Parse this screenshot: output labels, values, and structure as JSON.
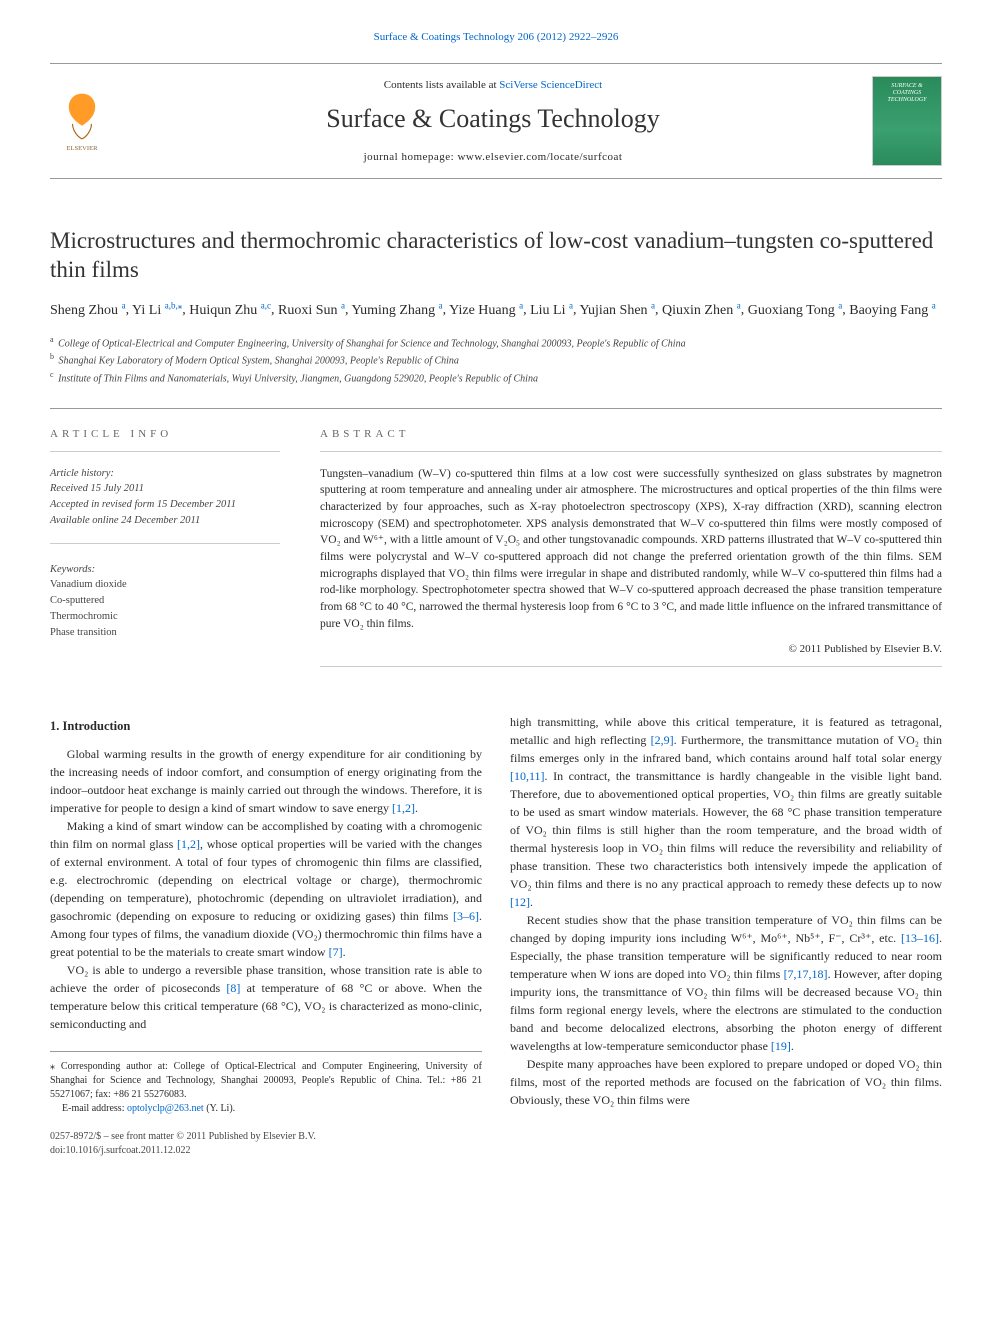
{
  "journal_ref_top": "Surface & Coatings Technology 206 (2012) 2922–2926",
  "header": {
    "contents_line_prefix": "Contents lists available at ",
    "contents_line_link": "SciVerse ScienceDirect",
    "journal_name": "Surface & Coatings Technology",
    "homepage_label": "journal homepage: ",
    "homepage_url": "www.elsevier.com/locate/surfcoat",
    "elsevier_brand": "ELSEVIER",
    "cover_text": "SURFACE & COATINGS TECHNOLOGY"
  },
  "title": "Microstructures and thermochromic characteristics of low-cost vanadium–tungsten co-sputtered thin films",
  "authors": [
    {
      "name": "Sheng Zhou",
      "aff": "a"
    },
    {
      "name": "Yi Li",
      "aff": "a,b,",
      "corr": true
    },
    {
      "name": "Huiqun Zhu",
      "aff": "a,c"
    },
    {
      "name": "Ruoxi Sun",
      "aff": "a"
    },
    {
      "name": "Yuming Zhang",
      "aff": "a"
    },
    {
      "name": "Yize Huang",
      "aff": "a"
    },
    {
      "name": "Liu Li",
      "aff": "a"
    },
    {
      "name": "Yujian Shen",
      "aff": "a"
    },
    {
      "name": "Qiuxin Zhen",
      "aff": "a"
    },
    {
      "name": "Guoxiang Tong",
      "aff": "a"
    },
    {
      "name": "Baoying Fang",
      "aff": "a"
    }
  ],
  "affiliations": [
    {
      "key": "a",
      "text": "College of Optical-Electrical and Computer Engineering, University of Shanghai for Science and Technology, Shanghai 200093, People's Republic of China"
    },
    {
      "key": "b",
      "text": "Shanghai Key Laboratory of Modern Optical System, Shanghai 200093, People's Republic of China"
    },
    {
      "key": "c",
      "text": "Institute of Thin Films and Nanomaterials, Wuyi University, Jiangmen, Guangdong 529020, People's Republic of China"
    }
  ],
  "article_info_label": "ARTICLE INFO",
  "abstract_label": "ABSTRACT",
  "history": {
    "head": "Article history:",
    "received": "Received 15 July 2011",
    "revised": "Accepted in revised form 15 December 2011",
    "online": "Available online 24 December 2011"
  },
  "keywords": {
    "head": "Keywords:",
    "items": [
      "Vanadium dioxide",
      "Co-sputtered",
      "Thermochromic",
      "Phase transition"
    ]
  },
  "abstract": "Tungsten–vanadium (W–V) co-sputtered thin films at a low cost were successfully synthesized on glass substrates by magnetron sputtering at room temperature and annealing under air atmosphere. The microstructures and optical properties of the thin films were characterized by four approaches, such as X-ray photoelectron spectroscopy (XPS), X-ray diffraction (XRD), scanning electron microscopy (SEM) and spectrophotometer. XPS analysis demonstrated that W–V co-sputtered thin films were mostly composed of VO₂ and W⁶⁺, with a little amount of V₂O₅ and other tungstovanadic compounds. XRD patterns illustrated that W–V co-sputtered thin films were polycrystal and W–V co-sputtered approach did not change the preferred orientation growth of the thin films. SEM micrographs displayed that VO₂ thin films were irregular in shape and distributed randomly, while W–V co-sputtered thin films had a rod-like morphology. Spectrophotometer spectra showed that W–V co-sputtered approach decreased the phase transition temperature from 68 °C to 40 °C, narrowed the thermal hysteresis loop from 6 °C to 3 °C, and made little influence on the infrared transmittance of pure VO₂ thin films.",
  "copyright": "© 2011 Published by Elsevier B.V.",
  "intro_head": "1. Introduction",
  "paras": {
    "p1": "Global warming results in the growth of energy expenditure for air conditioning by the increasing needs of indoor comfort, and consumption of energy originating from the indoor–outdoor heat exchange is mainly carried out through the windows. Therefore, it is imperative for people to design a kind of smart window to save energy ",
    "p1_ref": "[1,2]",
    "p1_tail": ".",
    "p2a": "Making a kind of smart window can be accomplished by coating with a chromogenic thin film on normal glass ",
    "p2_ref1": "[1,2]",
    "p2b": ", whose optical properties will be varied with the changes of external environment. A total of four types of chromogenic thin films are classified, e.g. electrochromic (depending on electrical voltage or charge), thermochromic (depending on temperature), photochromic (depending on ultraviolet irradiation), and gasochromic (depending on exposure to reducing or oxidizing gases) thin films ",
    "p2_ref2": "[3–6]",
    "p2c": ". Among four types of films, the vanadium dioxide (VO₂) thermochromic thin films have a great potential to be the materials to create smart window ",
    "p2_ref3": "[7]",
    "p2d": ".",
    "p3a": "VO₂ is able to undergo a reversible phase transition, whose transition rate is able to achieve the order of picoseconds ",
    "p3_ref1": "[8]",
    "p3b": " at temperature of 68 °C or above. When the temperature below this critical temperature (68 °C), VO₂ is characterized as mono-clinic, semiconducting and",
    "p4a": "high transmitting, while above this critical temperature, it is featured as tetragonal, metallic and high reflecting ",
    "p4_ref1": "[2,9]",
    "p4b": ". Furthermore, the transmittance mutation of VO₂ thin films emerges only in the infrared band, which contains around half total solar energy ",
    "p4_ref2": "[10,11]",
    "p4c": ". In contract, the transmittance is hardly changeable in the visible light band. Therefore, due to abovementioned optical properties, VO₂ thin films are greatly suitable to be used as smart window materials. However, the 68 °C phase transition temperature of VO₂ thin films is still higher than the room temperature, and the broad width of thermal hysteresis loop in VO₂ thin films will reduce the reversibility and reliability of phase transition. These two characteristics both intensively impede the application of VO₂ thin films and there is no any practical approach to remedy these defects up to now ",
    "p4_ref3": "[12]",
    "p4d": ".",
    "p5a": "Recent studies show that the phase transition temperature of VO₂ thin films can be changed by doping impurity ions including W⁶⁺, Mo⁶⁺, Nb⁵⁺, F⁻, Cr³⁺, etc. ",
    "p5_ref1": "[13–16]",
    "p5b": ". Especially, the phase transition temperature will be significantly reduced to near room temperature when W ions are doped into VO₂ thin films ",
    "p5_ref2": "[7,17,18]",
    "p5c": ". However, after doping impurity ions, the transmittance of VO₂ thin films will be decreased because VO₂ thin films form regional energy levels, where the electrons are stimulated to the conduction band and become delocalized electrons, absorbing the photon energy of different wavelengths at low-temperature semiconductor phase ",
    "p5_ref3": "[19]",
    "p5d": ".",
    "p6": "Despite many approaches have been explored to prepare undoped or doped VO₂ thin films, most of the reported methods are focused on the fabrication of VO₂ thin films. Obviously, these VO₂ thin films were"
  },
  "footnotes": {
    "corr": "⁎ Corresponding author at: College of Optical-Electrical and Computer Engineering, University of Shanghai for Science and Technology, Shanghai 200093, People's Republic of China. Tel.: +86 21 55271067; fax: +86 21 55276083.",
    "email_label": "E-mail address: ",
    "email": "optolyclp@263.net",
    "email_who": " (Y. Li)."
  },
  "footer": {
    "issn": "0257-8972/$ – see front matter © 2011 Published by Elsevier B.V.",
    "doi": "doi:10.1016/j.surfcoat.2011.12.022"
  },
  "colors": {
    "link": "#0066cc",
    "text": "#2a2a2a",
    "rule": "#999999",
    "cover_bg": "#2a8a5a",
    "elsevier_orange": "#ff8a00"
  }
}
